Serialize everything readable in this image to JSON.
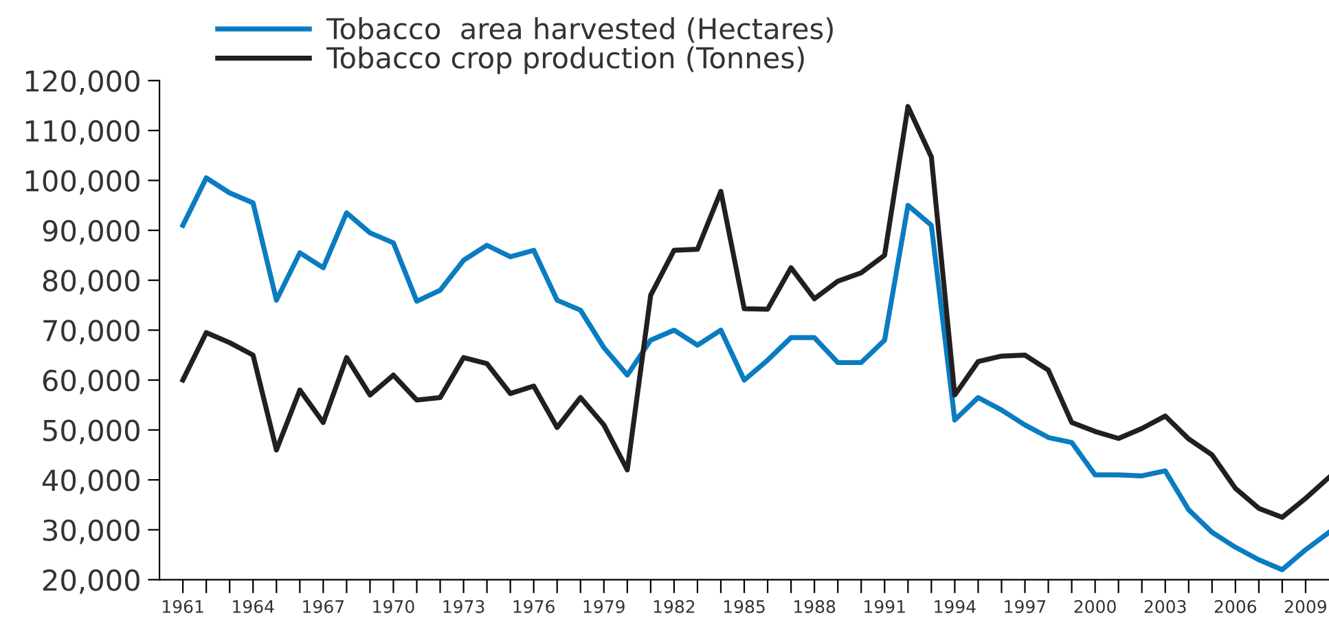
{
  "chart_data": {
    "type": "line",
    "x": [
      1961,
      1962,
      1963,
      1964,
      1965,
      1966,
      1967,
      1968,
      1969,
      1970,
      1971,
      1972,
      1973,
      1974,
      1975,
      1976,
      1977,
      1978,
      1979,
      1980,
      1981,
      1982,
      1983,
      1984,
      1985,
      1986,
      1987,
      1988,
      1989,
      1990,
      1991,
      1992,
      1993,
      1994,
      1995,
      1996,
      1997,
      1998,
      1999,
      2000,
      2001,
      2002,
      2003,
      2004,
      2005,
      2006,
      2007,
      2008,
      2009,
      2010
    ],
    "series": [
      {
        "name": "Tobacco  area harvested (Hectares)",
        "color": "#0a7cc1",
        "values": [
          91000,
          100500,
          97500,
          95500,
          76000,
          85500,
          82500,
          93500,
          89500,
          87500,
          75800,
          78000,
          84000,
          87000,
          84700,
          86000,
          76000,
          74000,
          66500,
          61000,
          68000,
          70000,
          67000,
          70000,
          60000,
          64000,
          68500,
          68500,
          63500,
          63500,
          68000,
          95000,
          91000,
          52000,
          56500,
          54000,
          51000,
          48500,
          47500,
          41000,
          41000,
          40800,
          41800,
          34000,
          29500,
          26500,
          24000,
          22000,
          26000,
          29500
        ]
      },
      {
        "name": "Tobacco crop production (Tonnes)",
        "color": "#231f20",
        "values": [
          60000,
          69500,
          67500,
          65000,
          46000,
          58000,
          51500,
          64500,
          57000,
          61000,
          56000,
          56500,
          64500,
          63300,
          57300,
          58800,
          50500,
          56500,
          51000,
          42000,
          77000,
          86000,
          86200,
          97800,
          74300,
          74200,
          82500,
          76300,
          79800,
          81500,
          85000,
          114800,
          104700,
          57000,
          63700,
          64800,
          65000,
          62000,
          51500,
          49700,
          48300,
          50300,
          52800,
          48200,
          45000,
          38300,
          34300,
          32500,
          36300,
          40500
        ]
      }
    ],
    "xlim": [
      1960,
      2010
    ],
    "xticks": [
      1961,
      {
        "value": 1962,
        "label": null
      },
      {
        "value": 1963,
        "label": null
      },
      1964,
      {
        "value": 1965,
        "label": null
      },
      {
        "value": 1966,
        "label": null
      },
      1967,
      {
        "value": 1968,
        "label": null
      },
      {
        "value": 1969,
        "label": null
      },
      1970,
      {
        "value": 1971,
        "label": null
      },
      {
        "value": 1972,
        "label": null
      },
      1973,
      {
        "value": 1974,
        "label": null
      },
      {
        "value": 1975,
        "label": null
      },
      1976,
      {
        "value": 1977,
        "label": null
      },
      {
        "value": 1978,
        "label": null
      },
      1979,
      {
        "value": 1980,
        "label": null
      },
      {
        "value": 1981,
        "label": null
      },
      1982,
      {
        "value": 1983,
        "label": null
      },
      {
        "value": 1984,
        "label": null
      },
      1985,
      {
        "value": 1986,
        "label": null
      },
      {
        "value": 1987,
        "label": null
      },
      1988,
      {
        "value": 1989,
        "label": null
      },
      {
        "value": 1990,
        "label": null
      },
      1991,
      {
        "value": 1992,
        "label": null
      },
      {
        "value": 1993,
        "label": null
      },
      1994,
      {
        "value": 1995,
        "label": null
      },
      {
        "value": 1996,
        "label": null
      },
      1997,
      {
        "value": 1998,
        "label": null
      },
      {
        "value": 1999,
        "label": null
      },
      2000,
      {
        "value": 2001,
        "label": null
      },
      {
        "value": 2002,
        "label": null
      },
      2003,
      {
        "value": 2004,
        "label": null
      },
      {
        "value": 2005,
        "label": null
      },
      2006,
      {
        "value": 2007,
        "label": null
      },
      {
        "value": 2008,
        "label": null
      },
      2009
    ],
    "ylim": [
      20000,
      120000
    ],
    "yticks": [
      {
        "value": 20000,
        "label": "20,000"
      },
      {
        "value": 30000,
        "label": "30,000"
      },
      {
        "value": 40000,
        "label": "40,000"
      },
      {
        "value": 50000,
        "label": "50,000"
      },
      {
        "value": 60000,
        "label": "60,000"
      },
      {
        "value": 70000,
        "label": "70,000"
      },
      {
        "value": 80000,
        "label": "80,000"
      },
      {
        "value": 90000,
        "label": "90,000"
      },
      {
        "value": 100000,
        "label": "100,000"
      },
      {
        "value": 110000,
        "label": "110,000"
      },
      {
        "value": 120000,
        "label": "120,000"
      }
    ],
    "grid": false,
    "legend": "top",
    "marker": "none",
    "line_style": "solid"
  }
}
